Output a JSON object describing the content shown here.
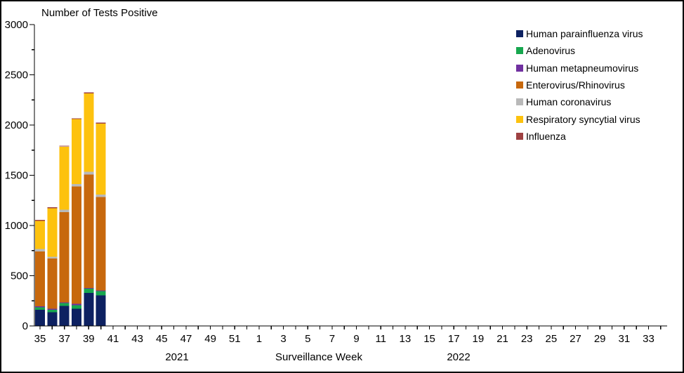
{
  "title": "Number of Tests Positive",
  "x_axis_title": "Surveillance Week",
  "years": [
    {
      "text": "2021"
    },
    {
      "text": "2022"
    }
  ],
  "y_axis": {
    "min": 0,
    "max": 3000,
    "major_step": 500,
    "minor_step": 250,
    "tick_labels": [
      "0",
      "500",
      "1000",
      "1500",
      "2000",
      "2500",
      "3000"
    ]
  },
  "x_axis": {
    "week_sequence_2021": {
      "first": 35,
      "last": 52
    },
    "week_sequence_2022": {
      "first": 1,
      "last": 34
    },
    "tick_labels": [
      "35",
      "37",
      "39",
      "41",
      "43",
      "45",
      "47",
      "49",
      "51",
      "1",
      "3",
      "5",
      "7",
      "9",
      "11",
      "13",
      "15",
      "17",
      "19",
      "21",
      "23",
      "25",
      "27",
      "29",
      "31",
      "33"
    ]
  },
  "chart_data": {
    "type": "bar",
    "stacked": true,
    "title": "Number of Tests Positive",
    "xlabel": "Surveillance Week",
    "ylabel": "",
    "ylim": [
      0,
      3000
    ],
    "grid": false,
    "legend_position": "top-right",
    "categories": [
      "2021-W35",
      "2021-W36",
      "2021-W37",
      "2021-W38",
      "2021-W39",
      "2021-W40"
    ],
    "category_week_indexes": [
      0,
      1,
      2,
      3,
      4,
      5
    ],
    "series": [
      {
        "name": "Human parainfluenza virus",
        "color": "#0d2161",
        "values": [
          160,
          135,
          200,
          173,
          330,
          305
        ]
      },
      {
        "name": "Adenovirus",
        "color": "#17a74f",
        "values": [
          25,
          27,
          28,
          35,
          42,
          42
        ]
      },
      {
        "name": "Human metapneumovirus",
        "color": "#7030a0",
        "values": [
          10,
          9,
          6,
          11,
          5,
          5
        ]
      },
      {
        "name": "Enterovirus/Rhinovirus",
        "color": "#c7680d",
        "values": [
          545,
          500,
          900,
          1170,
          1130,
          932
        ]
      },
      {
        "name": "Human coronavirus",
        "color": "#b9b9b9",
        "values": [
          25,
          19,
          23,
          24,
          28,
          24
        ]
      },
      {
        "name": "Respiratory syncytial virus",
        "color": "#fdc20e",
        "values": [
          280,
          482,
          628,
          645,
          780,
          707
        ]
      },
      {
        "name": "Influenza",
        "color": "#9e4142",
        "values": [
          10,
          10,
          10,
          10,
          10,
          10
        ]
      }
    ],
    "totals": [
      1055,
      1182,
      1795,
      2068,
      2325,
      2025
    ]
  }
}
